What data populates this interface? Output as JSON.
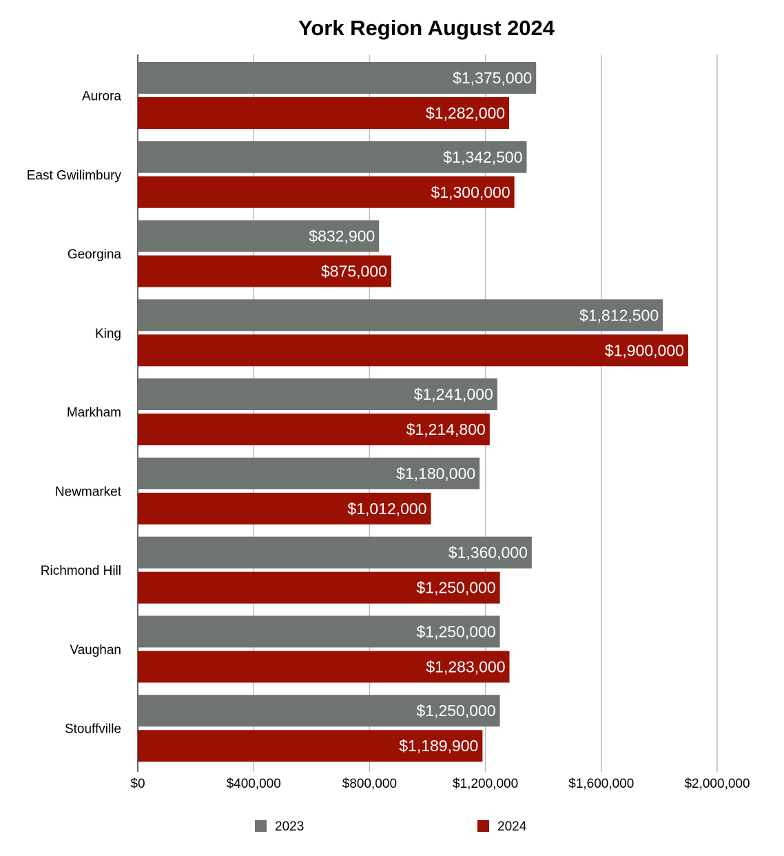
{
  "chart_data": {
    "type": "bar",
    "orientation": "horizontal",
    "title": "York Region August 2024",
    "categories": [
      "Aurora",
      "East Gwilimbury",
      "Georgina",
      "King",
      "Markham",
      "Newmarket",
      "Richmond Hill",
      "Vaughan",
      "Stouffville"
    ],
    "series": [
      {
        "name": "2023",
        "color": "#6f7470",
        "values": [
          1375000,
          1342500,
          832900,
          1812500,
          1241000,
          1180000,
          1360000,
          1250000,
          1250000
        ],
        "labels": [
          "$1,375,000",
          "$1,342,500",
          "$832,900",
          "$1,812,500",
          "$1,241,000",
          "$1,180,000",
          "$1,360,000",
          "$1,250,000",
          "$1,250,000"
        ]
      },
      {
        "name": "2024",
        "color": "#9a1104",
        "values": [
          1282000,
          1300000,
          875000,
          1900000,
          1214800,
          1012000,
          1250000,
          1283000,
          1189900
        ],
        "labels": [
          "$1,282,000",
          "$1,300,000",
          "$875,000",
          "$1,900,000",
          "$1,214,800",
          "$1,012,000",
          "$1,250,000",
          "$1,283,000",
          "$1,189,900"
        ]
      }
    ],
    "xlim": [
      0,
      2000000
    ],
    "xticks": [
      0,
      400000,
      800000,
      1200000,
      1600000,
      2000000
    ],
    "xtick_labels": [
      "$0",
      "$400,000",
      "$800,000",
      "$1,200,000",
      "$1,600,000",
      "$2,000,000"
    ],
    "grid": true,
    "legend_position": "bottom"
  }
}
